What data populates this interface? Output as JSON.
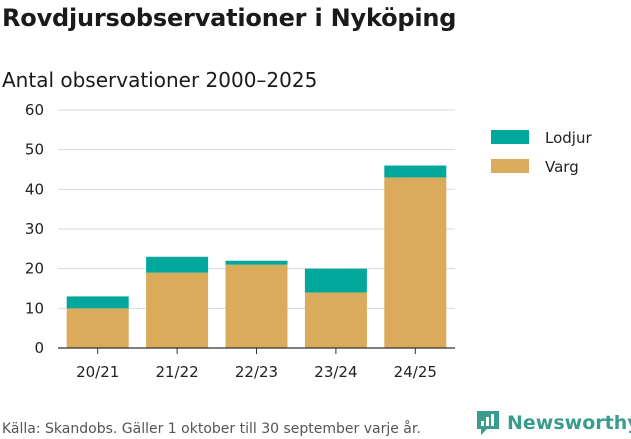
{
  "title": "Rovdjursobservationer i Nyköping",
  "subtitle": "Antal observationer 2000–2025",
  "source": "Källa: Skandobs. Gäller 1 oktober till 30 september varje år.",
  "brand": "Newsworthy",
  "chart_data": {
    "type": "bar",
    "stacked": true,
    "categories": [
      "20/21",
      "21/22",
      "22/23",
      "23/24",
      "24/25"
    ],
    "series": [
      {
        "name": "Varg",
        "values": [
          10,
          19,
          21,
          14,
          43
        ],
        "color": "#d9ab5a"
      },
      {
        "name": "Lodjur",
        "values": [
          3,
          4,
          1,
          6,
          3
        ],
        "color": "#00a79a"
      }
    ],
    "ylim": [
      0,
      60
    ],
    "yticks": [
      0,
      10,
      20,
      30,
      40,
      50,
      60
    ],
    "grid": true,
    "legend_position": "top-right",
    "legend_order": [
      "Lodjur",
      "Varg"
    ]
  }
}
